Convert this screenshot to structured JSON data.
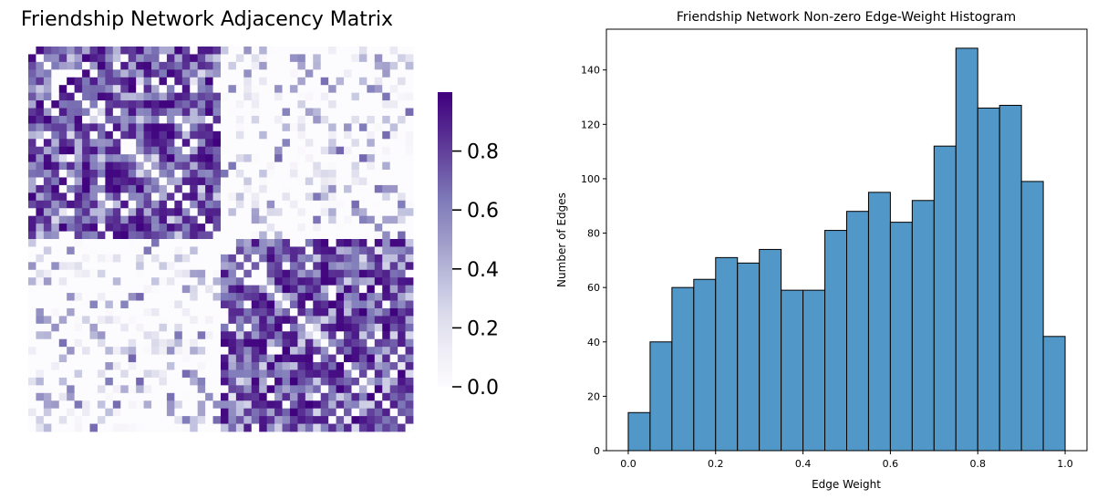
{
  "chart_data": [
    {
      "type": "heatmap",
      "title": "Friendship Network Adjacency Matrix",
      "rows": 50,
      "cols": 50,
      "block_size": 25,
      "description_of_values": "symmetric weighted adjacency matrix with two dense diagonal blocks (top-left, bottom-right), sparse off-diagonal blocks and zero diagonal",
      "colormap": "Purples",
      "colormap_stops": [
        "#fcfbfd",
        "#efedf5",
        "#dadaeb",
        "#bcbddc",
        "#9e9ac8",
        "#807dba",
        "#6a51a3",
        "#54278f",
        "#3f007d"
      ],
      "colorbar": {
        "range": [
          0,
          1
        ],
        "ticks": [
          0.0,
          0.2,
          0.4,
          0.6,
          0.8
        ],
        "tick_labels": [
          "0.0",
          "0.2",
          "0.4",
          "0.6",
          "0.8"
        ]
      }
    },
    {
      "type": "bar",
      "title": "Friendship Network Non-zero Edge-Weight Histogram",
      "xlabel": "Edge Weight",
      "ylabel": "Number of Edges",
      "bin_edges": [
        0.0,
        0.05,
        0.1,
        0.15,
        0.2,
        0.25,
        0.3,
        0.35,
        0.4,
        0.45,
        0.5,
        0.55,
        0.6,
        0.65,
        0.7,
        0.75,
        0.8,
        0.85,
        0.9,
        0.95,
        1.0
      ],
      "values": [
        14,
        40,
        60,
        63,
        71,
        69,
        74,
        59,
        59,
        81,
        88,
        95,
        84,
        92,
        112,
        148,
        126,
        127,
        99,
        42
      ],
      "xlim": [
        -0.05,
        1.05
      ],
      "ylim": [
        0,
        155
      ],
      "xticks": [
        0.0,
        0.2,
        0.4,
        0.6,
        0.8,
        1.0
      ],
      "xtick_labels": [
        "0.0",
        "0.2",
        "0.4",
        "0.6",
        "0.8",
        "1.0"
      ],
      "yticks": [
        0,
        20,
        40,
        60,
        80,
        100,
        120,
        140
      ],
      "ytick_labels": [
        "0",
        "20",
        "40",
        "60",
        "80",
        "100",
        "120",
        "140"
      ],
      "bar_color": "#5197c8",
      "edge_color": "#000000",
      "grid": false,
      "legend": "none"
    }
  ]
}
